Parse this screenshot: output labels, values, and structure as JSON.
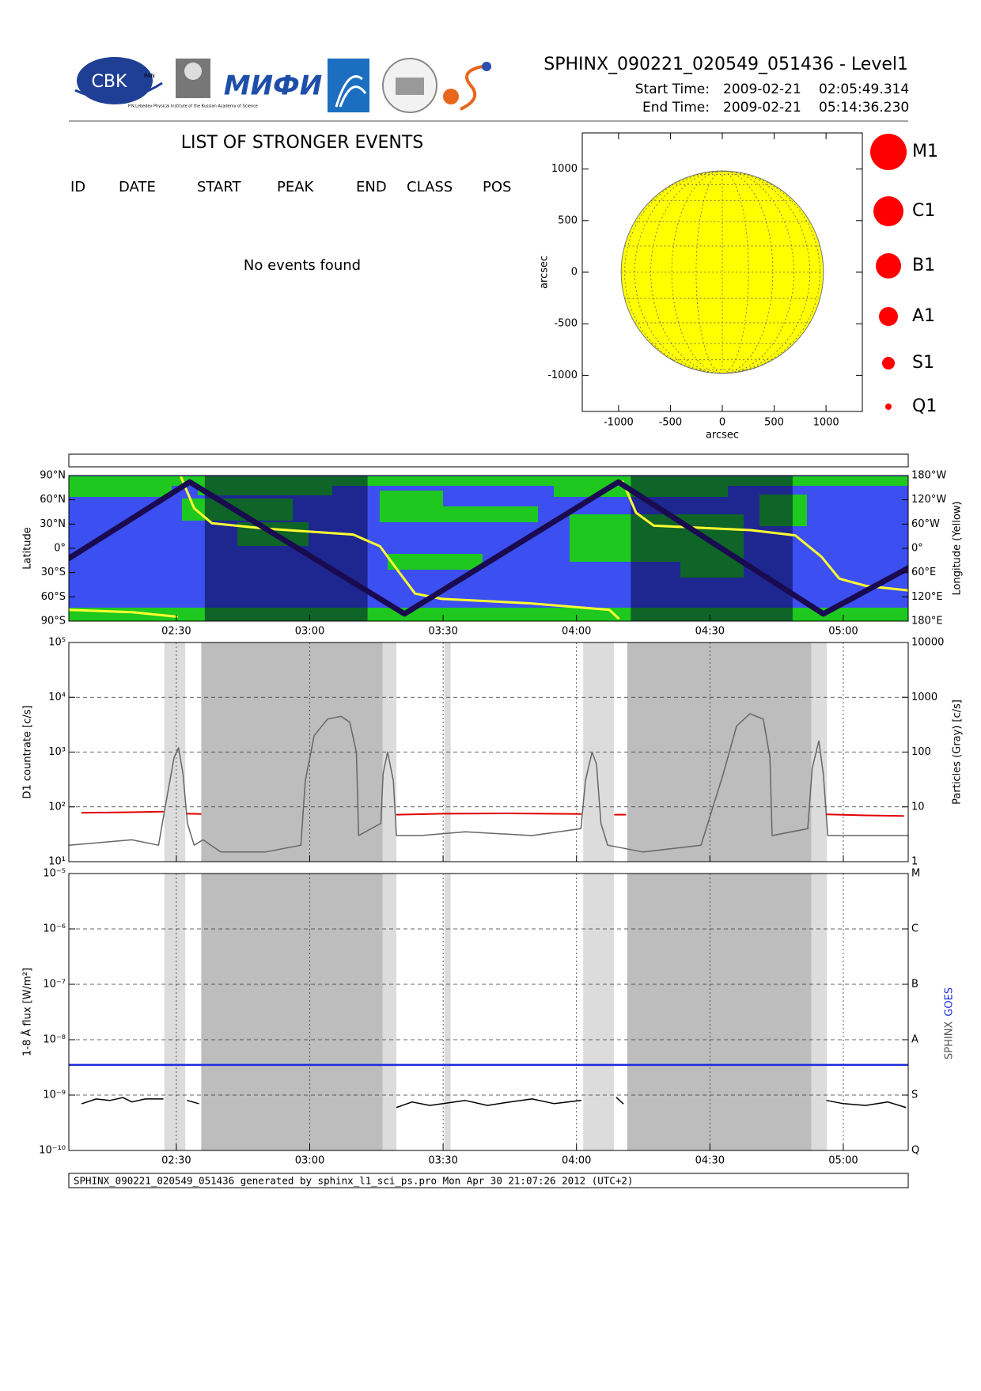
{
  "header": {
    "title": "SPHINX_090221_020549_051436 - Level1",
    "start_label": "Start Time:",
    "start_date": "2009-02-21",
    "start_time": "02:05:49.314",
    "end_label": "End Time:",
    "end_date": "2009-02-21",
    "end_time": "05:14:36.230",
    "logos": [
      "CBK",
      "PAN",
      "P.N.Lebedev Physical Institute of the Russian Academy of Science",
      "МИФИ"
    ]
  },
  "events": {
    "title": "LIST OF STRONGER EVENTS",
    "columns": [
      "ID",
      "DATE",
      "START",
      "PEAK",
      "END",
      "CLASS",
      "POS"
    ],
    "message": "No events found"
  },
  "footer": "SPHINX_090221_020549_051436 generated by sphinx_l1_sci_ps.pro Mon Apr 30 21:07:26 2012 (UTC+2)",
  "chart_data": [
    {
      "type": "disk",
      "xlabel": "arcsec",
      "ylabel": "arcsec",
      "xlim": [
        -1350,
        1350
      ],
      "ylim": [
        -1350,
        1350
      ],
      "xticks": [
        -1000,
        -500,
        0,
        500,
        1000
      ],
      "yticks": [
        -1000,
        -500,
        0,
        500,
        1000
      ],
      "disk_radius": 975,
      "color": "#ffff00",
      "legend": {
        "items": [
          "M1",
          "C1",
          "B1",
          "A1",
          "S1",
          "Q1"
        ],
        "color": "#ff0000"
      }
    },
    {
      "type": "line",
      "ylabel": "Latitude",
      "y2label": "Longitude (Yellow)",
      "grid": false,
      "show_xtick_labels": true,
      "xlim": [
        125.82,
        314.6
      ],
      "xticks": [
        {
          "value": 150,
          "label": "02:30"
        },
        {
          "value": 180,
          "label": "03:00"
        },
        {
          "value": 210,
          "label": "03:30"
        },
        {
          "value": 240,
          "label": "04:00"
        },
        {
          "value": 270,
          "label": "04:30"
        },
        {
          "value": 300,
          "label": "05:00"
        }
      ],
      "ylim": [
        -90,
        90
      ],
      "yticks": [
        {
          "value": 90,
          "label": "90°N"
        },
        {
          "value": 60,
          "label": "60°N"
        },
        {
          "value": 30,
          "label": "30°N"
        },
        {
          "value": 0,
          "label": "0°"
        },
        {
          "value": -30,
          "label": "30°S"
        },
        {
          "value": -60,
          "label": "60°S"
        },
        {
          "value": -90,
          "label": "90°S"
        }
      ],
      "y2lim": [
        180,
        -180
      ],
      "y2ticks": [
        {
          "value": -180,
          "label": "180°W"
        },
        {
          "value": -120,
          "label": "120°W"
        },
        {
          "value": -60,
          "label": "60°W"
        },
        {
          "value": 0,
          "label": "0°"
        },
        {
          "value": 60,
          "label": "60°E"
        },
        {
          "value": 120,
          "label": "120°E"
        },
        {
          "value": 180,
          "label": "180°E"
        }
      ],
      "shaded": [
        {
          "color": "#000030",
          "intervals": [
            [
              156.4,
              193.0
            ],
            [
              252.2,
              288.6
            ]
          ]
        }
      ],
      "series": [
        {
          "color": "#ffff30",
          "axis": "y2",
          "linewidth": 3,
          "x": [
            125.8,
            140.1,
            150.1,
            150.6,
            151.1,
            154.0,
            158.0,
            169.9,
            189.8,
            195.8,
            199.7,
            203.7,
            209.7,
            229.5,
            247.4,
            249.4,
            249.9,
            250.4,
            253.4,
            257.4,
            279.2,
            289.2,
            295.1,
            299.1,
            305.1,
            314.6
          ],
          "values": [
            152,
            158,
            169,
            null,
            -175,
            -99,
            -62,
            -49,
            -34,
            -5,
            53,
            112,
            125,
            136,
            152,
            173,
            null,
            -165,
            -88,
            -56,
            -45,
            -32,
            21,
            75,
            93,
            104
          ]
        },
        {
          "color": "#1a0a50",
          "linewidth": 7,
          "x": [
            125.8,
            153.0,
            201.3,
            249.4,
            295.5,
            314.6
          ],
          "values": [
            -12.5,
            82,
            -81,
            82,
            -81,
            -24.5
          ]
        }
      ]
    },
    {
      "type": "line",
      "log": true,
      "grid": true,
      "show_xtick_labels": false,
      "ylabel": "D1 countrate [c/s]",
      "y2label": "Particles (Gray) [c/s]",
      "xlim": [
        125.82,
        314.6
      ],
      "xticks": [
        {
          "value": 150,
          "label": "02:30"
        },
        {
          "value": 180,
          "label": "03:00"
        },
        {
          "value": 210,
          "label": "03:30"
        },
        {
          "value": 240,
          "label": "04:00"
        },
        {
          "value": 270,
          "label": "04:30"
        },
        {
          "value": 300,
          "label": "05:00"
        }
      ],
      "ylim": [
        10,
        100000
      ],
      "yticks": [
        {
          "value": 10,
          "label": "10¹"
        },
        {
          "value": 100,
          "label": "10²"
        },
        {
          "value": 1000,
          "label": "10³"
        },
        {
          "value": 10000,
          "label": "10⁴"
        },
        {
          "value": 100000,
          "label": "10⁵"
        }
      ],
      "y2lim": [
        1,
        10000
      ],
      "y2ticks": [
        1,
        10,
        100,
        1000,
        10000
      ],
      "shaded": [
        {
          "color": "#dcdcdc",
          "intervals": [
            [
              147.3,
              152.0
            ],
            [
              196.4,
              199.5
            ],
            [
              210.3,
              211.7
            ],
            [
              241.5,
              248.4
            ],
            [
              292.8,
              296.3
            ]
          ]
        },
        {
          "color": "#bdbdbd",
          "intervals": [
            [
              155.6,
              196.4
            ],
            [
              251.4,
              292.8
            ]
          ]
        }
      ],
      "series": [
        {
          "color": "#666666",
          "axis": "y2",
          "linewidth": 1.5,
          "x": [
            125.8,
            140,
            146,
            147.5,
            149.5,
            150.5,
            151.5,
            152.5,
            154,
            156,
            160,
            170,
            178,
            179,
            181,
            184,
            187,
            189,
            190.5,
            191,
            196,
            196.5,
            197.5,
            198.8,
            199.5,
            205,
            215,
            230,
            241,
            242,
            243.5,
            244.5,
            245.5,
            247,
            255,
            268,
            273,
            276,
            279,
            282,
            283.5,
            284,
            292,
            293,
            294.5,
            295.5,
            296.5,
            305,
            314.6
          ],
          "values": [
            2,
            2.5,
            2,
            10,
            80,
            120,
            40,
            5,
            2,
            2.5,
            1.5,
            1.5,
            2,
            30,
            200,
            400,
            450,
            350,
            100,
            3,
            5,
            40,
            100,
            30,
            3,
            3,
            3.5,
            3,
            4,
            30,
            100,
            60,
            5,
            2,
            1.5,
            2,
            40,
            300,
            500,
            400,
            80,
            3,
            4,
            50,
            160,
            40,
            3,
            3,
            3
          ]
        },
        {
          "color": "#e00000",
          "linewidth": 2,
          "x": [
            128.8,
            140,
            147,
            148,
            152.5,
            155.5,
            156,
            199.6,
            210,
            225,
            241,
            242,
            248.6,
            251,
            252,
            296.3,
            305,
            313.5
          ],
          "values": [
            78,
            80,
            82,
            null,
            75,
            74,
            null,
            72,
            75,
            76,
            74,
            null,
            72,
            72,
            null,
            73,
            70,
            68
          ]
        }
      ]
    },
    {
      "type": "line",
      "log": true,
      "grid": true,
      "show_xtick_labels": true,
      "ylabel": "1-8 Å flux [W/m²]",
      "xlim": [
        125.82,
        314.6
      ],
      "xticks": [
        {
          "value": 150,
          "label": "02:30"
        },
        {
          "value": 180,
          "label": "03:00"
        },
        {
          "value": 210,
          "label": "03:30"
        },
        {
          "value": 240,
          "label": "04:00"
        },
        {
          "value": 270,
          "label": "04:30"
        },
        {
          "value": 300,
          "label": "05:00"
        }
      ],
      "ylim": [
        1e-10,
        1e-05
      ],
      "yticks": [
        {
          "value": 1e-10,
          "label": "10⁻¹⁰"
        },
        {
          "value": 1e-09,
          "label": "10⁻⁹"
        },
        {
          "value": 1e-08,
          "label": "10⁻⁸"
        },
        {
          "value": 1e-07,
          "label": "10⁻⁷"
        },
        {
          "value": 1e-06,
          "label": "10⁻⁶"
        },
        {
          "value": 1e-05,
          "label": "10⁻⁵"
        }
      ],
      "y2lim": [
        1e-10,
        1e-05
      ],
      "y2ticks": [
        {
          "value": 1e-10,
          "label": "Q"
        },
        {
          "value": 1e-09,
          "label": "S"
        },
        {
          "value": 1e-08,
          "label": "A"
        },
        {
          "value": 1e-07,
          "label": "B"
        },
        {
          "value": 1e-06,
          "label": "C"
        },
        {
          "value": 1e-05,
          "label": "M"
        }
      ],
      "shaded": [
        {
          "color": "#dcdcdc",
          "intervals": [
            [
              147.3,
              152.0
            ],
            [
              196.4,
              199.5
            ],
            [
              210.3,
              211.7
            ],
            [
              241.5,
              248.4
            ],
            [
              292.8,
              296.3
            ]
          ]
        },
        {
          "color": "#bdbdbd",
          "intervals": [
            [
              155.6,
              196.4
            ],
            [
              251.4,
              292.8
            ]
          ]
        }
      ],
      "series": [
        {
          "name": "SPHINX",
          "color": "#000000",
          "linewidth": 1.5,
          "x": [
            128.8,
            132,
            135,
            138,
            140,
            143,
            147,
            148,
            152.5,
            155,
            156,
            199.6,
            203,
            207,
            210,
            215,
            220,
            225,
            230,
            235,
            241,
            242,
            249,
            250.5,
            251,
            296.3,
            300,
            305,
            310,
            314
          ],
          "values": [
            7e-10,
            8.5e-10,
            8e-10,
            9e-10,
            7.5e-10,
            8.5e-10,
            8.5e-10,
            null,
            8e-10,
            7e-10,
            null,
            6e-10,
            7.5e-10,
            6.5e-10,
            7e-10,
            8e-10,
            6.5e-10,
            7.5e-10,
            8.5e-10,
            7e-10,
            8e-10,
            null,
            9e-10,
            7e-10,
            null,
            8e-10,
            7e-10,
            6.5e-10,
            7.5e-10,
            6e-10
          ]
        },
        {
          "name": "GOES",
          "color": "#1c2ed8",
          "linewidth": 2.5,
          "x": [
            125.8,
            314.6
          ],
          "values": [
            3.5e-09,
            3.5e-09
          ]
        }
      ]
    }
  ]
}
